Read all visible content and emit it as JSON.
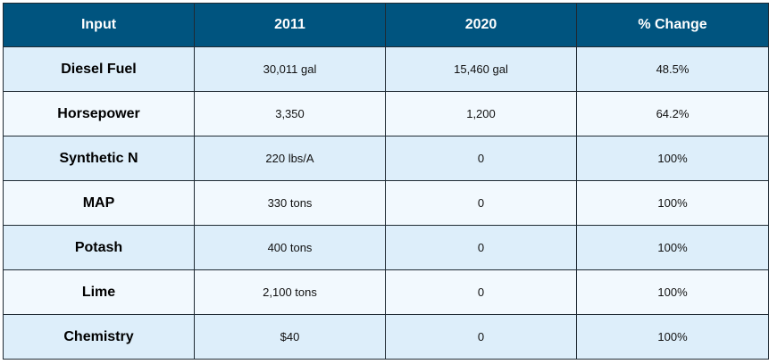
{
  "table": {
    "headers": [
      "Input",
      "2011",
      "2020",
      "% Change"
    ],
    "rows": [
      {
        "label": "Diesel Fuel",
        "y2011": "30,011 gal",
        "y2020": "15,460 gal",
        "change": "48.5%"
      },
      {
        "label": "Horsepower",
        "y2011": "3,350",
        "y2020": "1,200",
        "change": "64.2%"
      },
      {
        "label": "Synthetic N",
        "y2011": "220 lbs/A",
        "y2020": "0",
        "change": "100%"
      },
      {
        "label": "MAP",
        "y2011": "330 tons",
        "y2020": "0",
        "change": "100%"
      },
      {
        "label": "Potash",
        "y2011": "400 tons",
        "y2020": "0",
        "change": "100%"
      },
      {
        "label": "Lime",
        "y2011": "2,100 tons",
        "y2020": "0",
        "change": "100%"
      },
      {
        "label": "Chemistry",
        "y2011": "$40",
        "y2020": "0",
        "change": "100%"
      }
    ]
  },
  "colors": {
    "header_bg": "#00547f",
    "header_text": "#ffffff",
    "row_odd_bg": "#ddeefa",
    "row_even_bg": "#f2f9fe",
    "border": "#1f2a33"
  }
}
